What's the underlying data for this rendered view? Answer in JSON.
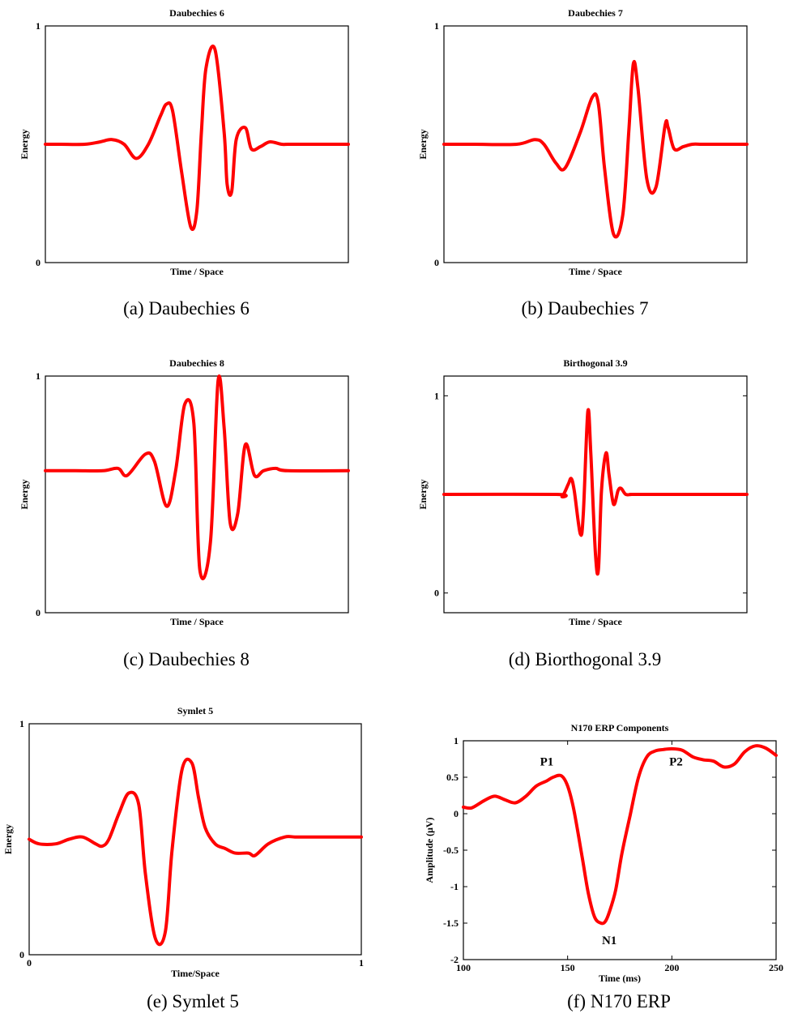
{
  "colors": {
    "line": "#ff0000",
    "axis": "#000000",
    "background": "#ffffff"
  },
  "chart_data": [
    {
      "type": "line",
      "title": "Daubechies 6",
      "xlabel": "Time / Space",
      "ylabel": "Energy",
      "caption": "(a) Daubechies 6",
      "xlim": [
        0,
        1
      ],
      "ylim": [
        0,
        1
      ],
      "xticks": [],
      "yticks": [
        "0",
        "1"
      ],
      "series": [
        {
          "x": [
            0,
            0.05,
            0.13,
            0.18,
            0.22,
            0.26,
            0.3,
            0.34,
            0.38,
            0.4,
            0.42,
            0.45,
            0.48,
            0.5,
            0.515,
            0.53,
            0.56,
            0.59,
            0.6,
            0.615,
            0.63,
            0.66,
            0.68,
            0.71,
            0.74,
            0.78,
            0.8,
            0.85,
            1.0
          ],
          "y": [
            0.5,
            0.5,
            0.5,
            0.51,
            0.52,
            0.5,
            0.44,
            0.5,
            0.62,
            0.67,
            0.64,
            0.38,
            0.15,
            0.22,
            0.55,
            0.82,
            0.9,
            0.55,
            0.33,
            0.3,
            0.52,
            0.57,
            0.48,
            0.49,
            0.51,
            0.5,
            0.5,
            0.5,
            0.5
          ]
        }
      ]
    },
    {
      "type": "line",
      "title": "Daubechies 7",
      "xlabel": "Time / Space",
      "ylabel": "Energy",
      "caption": "(b) Daubechies 7",
      "xlim": [
        0,
        1
      ],
      "ylim": [
        0,
        1
      ],
      "xticks": [],
      "yticks": [
        "0",
        "1"
      ],
      "series": [
        {
          "x": [
            0,
            0.1,
            0.24,
            0.3,
            0.33,
            0.37,
            0.4,
            0.45,
            0.49,
            0.51,
            0.53,
            0.56,
            0.59,
            0.61,
            0.625,
            0.64,
            0.67,
            0.7,
            0.73,
            0.74,
            0.76,
            0.79,
            0.82,
            0.85,
            0.9,
            1.0
          ],
          "y": [
            0.5,
            0.5,
            0.5,
            0.52,
            0.5,
            0.42,
            0.4,
            0.55,
            0.7,
            0.67,
            0.4,
            0.12,
            0.2,
            0.55,
            0.84,
            0.74,
            0.35,
            0.32,
            0.58,
            0.57,
            0.48,
            0.49,
            0.5,
            0.5,
            0.5,
            0.5
          ]
        }
      ]
    },
    {
      "type": "line",
      "title": "Daubechies 8",
      "xlabel": "Time / Space",
      "ylabel": "Energy",
      "caption": "(c) Daubechies 8",
      "xlim": [
        0,
        1
      ],
      "ylim": [
        0,
        1
      ],
      "xticks": [],
      "yticks": [
        "0",
        "1"
      ],
      "series": [
        {
          "x": [
            0,
            0.1,
            0.19,
            0.24,
            0.27,
            0.33,
            0.36,
            0.4,
            0.43,
            0.46,
            0.49,
            0.51,
            0.545,
            0.57,
            0.59,
            0.61,
            0.635,
            0.66,
            0.69,
            0.72,
            0.76,
            0.8,
            1.0
          ],
          "y": [
            0.6,
            0.6,
            0.6,
            0.61,
            0.58,
            0.67,
            0.64,
            0.45,
            0.6,
            0.88,
            0.8,
            0.18,
            0.3,
            0.98,
            0.78,
            0.38,
            0.42,
            0.71,
            0.58,
            0.6,
            0.61,
            0.6,
            0.6
          ]
        }
      ]
    },
    {
      "type": "line",
      "title": "Birthogonal 3.9",
      "xlabel": "Time / Space",
      "ylabel": "Energy",
      "caption": "(d) Biorthogonal 3.9",
      "xlim": [
        0,
        1
      ],
      "ylim": [
        -0.1,
        1.1
      ],
      "xticks": [],
      "yticks": [
        "0",
        "1"
      ],
      "series": [
        {
          "x": [
            0,
            0.37,
            0.39,
            0.41,
            0.42,
            0.43,
            0.45,
            0.46,
            0.475,
            0.485,
            0.5,
            0.51,
            0.52,
            0.535,
            0.545,
            0.56,
            0.575,
            0.585,
            0.6,
            0.62,
            0.65,
            1.0
          ],
          "y": [
            0.5,
            0.5,
            0.49,
            0.55,
            0.58,
            0.52,
            0.3,
            0.4,
            0.92,
            0.7,
            0.2,
            0.12,
            0.52,
            0.71,
            0.6,
            0.45,
            0.52,
            0.53,
            0.5,
            0.5,
            0.5,
            0.5
          ]
        }
      ]
    },
    {
      "type": "line",
      "title": "Symlet 5",
      "xlabel": "Time/Space",
      "ylabel": "Energy",
      "caption": "(e) Symlet 5",
      "xlim": [
        0,
        1
      ],
      "ylim": [
        0,
        1
      ],
      "xticks": [
        "0",
        "1"
      ],
      "yticks": [
        "0",
        "1"
      ],
      "series": [
        {
          "x": [
            0,
            0.03,
            0.08,
            0.12,
            0.16,
            0.2,
            0.22,
            0.24,
            0.27,
            0.3,
            0.33,
            0.35,
            0.38,
            0.41,
            0.43,
            0.46,
            0.49,
            0.51,
            0.53,
            0.56,
            0.59,
            0.62,
            0.66,
            0.68,
            0.72,
            0.77,
            0.8,
            0.85,
            0.9,
            1.0
          ],
          "y": [
            0.5,
            0.48,
            0.48,
            0.5,
            0.51,
            0.48,
            0.47,
            0.5,
            0.61,
            0.7,
            0.65,
            0.35,
            0.07,
            0.1,
            0.45,
            0.8,
            0.83,
            0.68,
            0.55,
            0.48,
            0.46,
            0.44,
            0.44,
            0.43,
            0.48,
            0.51,
            0.51,
            0.51,
            0.51,
            0.51
          ]
        }
      ]
    },
    {
      "type": "line",
      "title": "N170 ERP Components",
      "xlabel": "Time (ms)",
      "ylabel": "Amplitude (μV)",
      "caption": "(f) N170 ERP",
      "xlim": [
        100,
        250
      ],
      "ylim": [
        -2,
        1
      ],
      "xticks": [
        "100",
        "150",
        "200",
        "250"
      ],
      "yticks": [
        "1",
        "0.5",
        "0",
        "-0.5",
        "-1",
        "-1.5",
        "-2"
      ],
      "annotations": [
        {
          "text": "P1",
          "x": 140,
          "y": 0.66
        },
        {
          "text": "N1",
          "x": 170,
          "y": -1.79
        },
        {
          "text": "P2",
          "x": 202,
          "y": 0.66
        }
      ],
      "series": [
        {
          "x": [
            100,
            104,
            110,
            115,
            120,
            125,
            130,
            135,
            140,
            143,
            147,
            150,
            153,
            157,
            160,
            163,
            166,
            168,
            170,
            173,
            176,
            180,
            184,
            188,
            192,
            196,
            200,
            205,
            210,
            215,
            220,
            225,
            230,
            235,
            240,
            245,
            250
          ],
          "y": [
            0.09,
            0.08,
            0.18,
            0.24,
            0.19,
            0.15,
            0.24,
            0.38,
            0.45,
            0.5,
            0.52,
            0.38,
            0.05,
            -0.6,
            -1.1,
            -1.42,
            -1.5,
            -1.48,
            -1.35,
            -1.05,
            -0.55,
            -0.02,
            0.5,
            0.78,
            0.86,
            0.88,
            0.89,
            0.87,
            0.78,
            0.74,
            0.72,
            0.64,
            0.68,
            0.85,
            0.93,
            0.9,
            0.8
          ]
        }
      ]
    }
  ]
}
